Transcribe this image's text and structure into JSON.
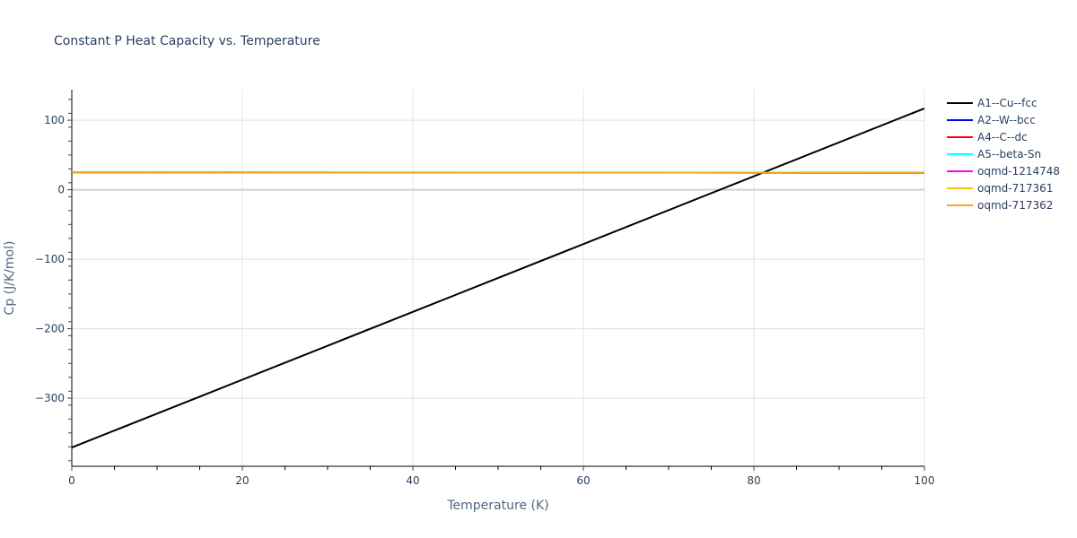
{
  "chart_data": {
    "type": "line",
    "title": "Constant P Heat Capacity vs. Temperature",
    "xlabel": "Temperature (K)",
    "ylabel": "Cp (J/K/mol)",
    "xlim": [
      0,
      100
    ],
    "ylim": [
      -398,
      144
    ],
    "x_ticks": [
      0,
      20,
      40,
      60,
      80,
      100
    ],
    "y_ticks": [
      -300,
      -200,
      -100,
      0,
      100
    ],
    "x_tick_labels": [
      "0",
      "20",
      "40",
      "60",
      "80",
      "100"
    ],
    "y_tick_labels": [
      "−300",
      "−200",
      "−100",
      "0",
      "100"
    ],
    "grid": true,
    "legend_position": "right",
    "series": [
      {
        "name": "A1--Cu--fcc",
        "color": "#000000",
        "x": [
          0,
          100
        ],
        "values": [
          -371,
          117
        ]
      },
      {
        "name": "A2--W--bcc",
        "color": "#0000ff",
        "x": [
          0,
          100
        ],
        "values": [
          24.8,
          24.5
        ]
      },
      {
        "name": "A4--C--dc",
        "color": "#ff0000",
        "x": [
          0,
          100
        ],
        "values": [
          24.8,
          24.5
        ]
      },
      {
        "name": "A5--beta-Sn",
        "color": "#00ffff",
        "x": [
          0,
          100
        ],
        "values": [
          24.8,
          24.5
        ]
      },
      {
        "name": "oqmd-1214748",
        "color": "#ff00ff",
        "x": [
          0,
          100
        ],
        "values": [
          24.8,
          24.5
        ]
      },
      {
        "name": "oqmd-717361",
        "color": "#ffc000",
        "x": [
          0,
          100
        ],
        "values": [
          24.9,
          24.6
        ]
      },
      {
        "name": "oqmd-717362",
        "color": "#f5a623",
        "x": [
          0,
          100
        ],
        "values": [
          25.0,
          24.7
        ]
      }
    ]
  }
}
